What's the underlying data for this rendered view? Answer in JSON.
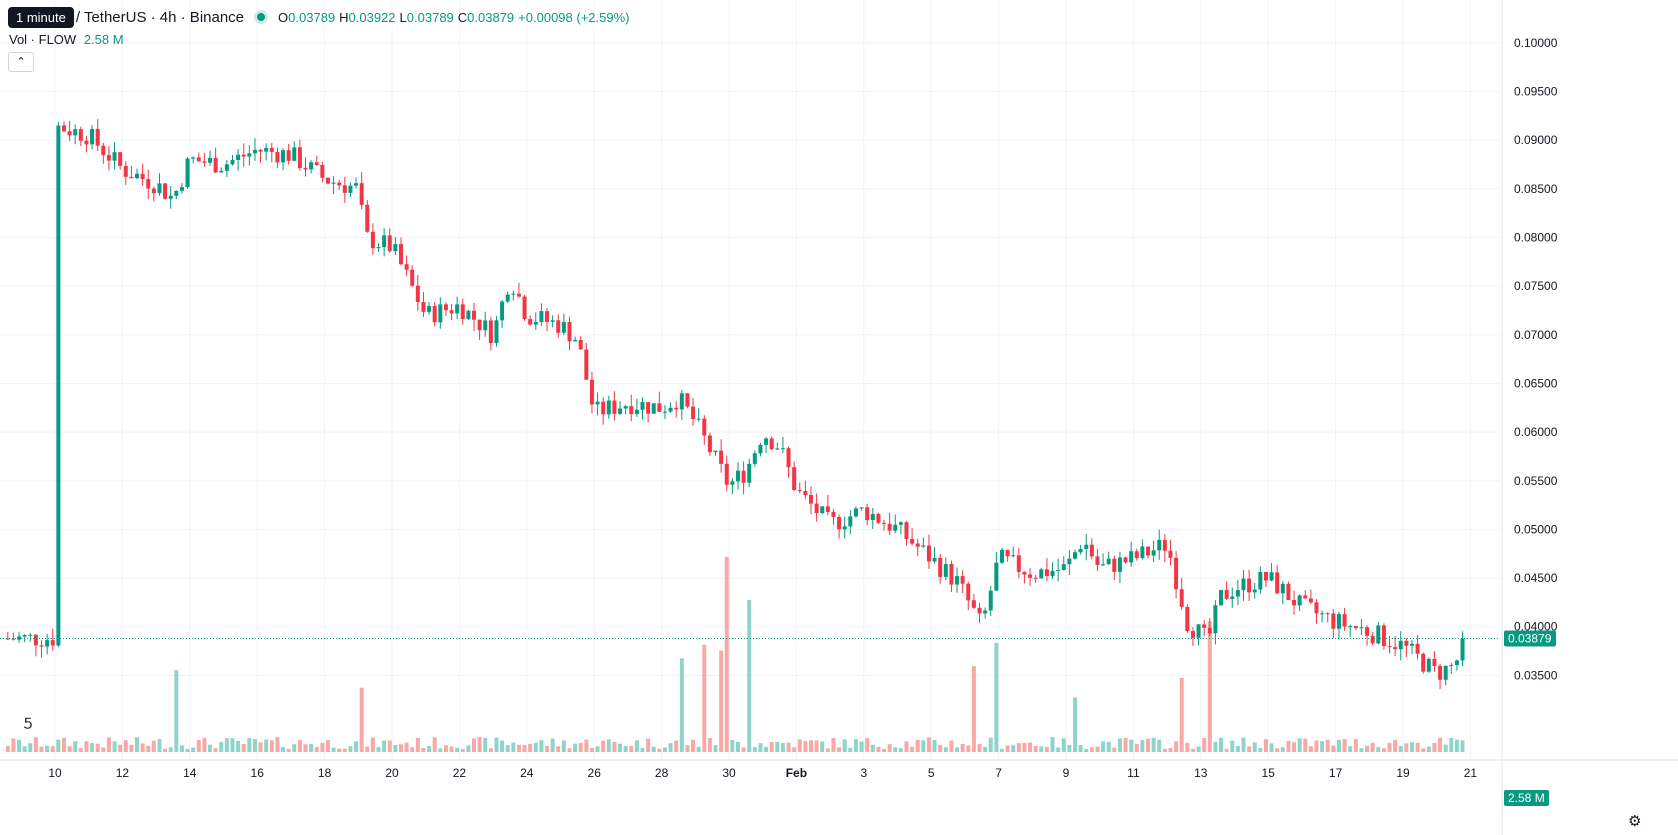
{
  "header": {
    "tooltip": "1 minute",
    "symbol": "/ TetherUS · 4h · Binance",
    "open_label": "O",
    "open": "0.03789",
    "high_label": "H",
    "high": "0.03922",
    "low_label": "L",
    "low": "0.03789",
    "close_label": "C",
    "close": "0.03879",
    "change": "+0.00098 (+2.59%)"
  },
  "volume_legend": {
    "label": "Vol · FLOW",
    "value": "2.58 M"
  },
  "price_badge": "0.03879",
  "volume_badge": "2.58 M",
  "icons": {
    "collapse": "chevron-up-icon",
    "logo": "tradingview-logo-icon",
    "settings": "gear-icon"
  },
  "colors": {
    "up": "#089981",
    "down": "#f23645",
    "vol_up": "#8fd4c8",
    "vol_down": "#f7a9a7"
  },
  "chart_data": {
    "type": "candlestick",
    "interval": "4h",
    "x_ticks": [
      {
        "label": "10",
        "day": 0
      },
      {
        "label": "12",
        "day": 2
      },
      {
        "label": "14",
        "day": 4
      },
      {
        "label": "16",
        "day": 6
      },
      {
        "label": "18",
        "day": 8
      },
      {
        "label": "20",
        "day": 10
      },
      {
        "label": "22",
        "day": 12
      },
      {
        "label": "24",
        "day": 14
      },
      {
        "label": "26",
        "day": 16
      },
      {
        "label": "28",
        "day": 18
      },
      {
        "label": "30",
        "day": 20
      },
      {
        "label": "Feb",
        "day": 22
      },
      {
        "label": "3",
        "day": 24
      },
      {
        "label": "5",
        "day": 26
      },
      {
        "label": "7",
        "day": 28
      },
      {
        "label": "9",
        "day": 30
      },
      {
        "label": "11",
        "day": 32
      },
      {
        "label": "13",
        "day": 34
      },
      {
        "label": "15",
        "day": 36
      },
      {
        "label": "17",
        "day": 38
      },
      {
        "label": "19",
        "day": 40
      },
      {
        "label": "21",
        "day": 42
      }
    ],
    "y_ticks": [
      "0.03500",
      "0.04000",
      "0.04500",
      "0.05000",
      "0.05500",
      "0.06000",
      "0.06500",
      "0.07000",
      "0.07500",
      "0.08000",
      "0.08500",
      "0.09000",
      "0.09500",
      "0.10000"
    ],
    "ylim": [
      0.0335,
      0.1007
    ],
    "last_price": 0.03879,
    "price_path": [
      [
        0,
        0.0915
      ],
      [
        1,
        0.0905
      ],
      [
        2,
        0.087
      ],
      [
        3,
        0.0855
      ],
      [
        3.5,
        0.084
      ],
      [
        4,
        0.088
      ],
      [
        5,
        0.0875
      ],
      [
        6,
        0.089
      ],
      [
        7,
        0.0885
      ],
      [
        8,
        0.086
      ],
      [
        9,
        0.085
      ],
      [
        9.2,
        0.08
      ],
      [
        10,
        0.079
      ],
      [
        11,
        0.072
      ],
      [
        12,
        0.073
      ],
      [
        13,
        0.07
      ],
      [
        13.5,
        0.076
      ],
      [
        14,
        0.072
      ],
      [
        15,
        0.071
      ],
      [
        15.5,
        0.0695
      ],
      [
        16,
        0.062
      ],
      [
        17,
        0.063
      ],
      [
        18,
        0.0625
      ],
      [
        18.5,
        0.0635
      ],
      [
        19,
        0.061
      ],
      [
        20,
        0.0545
      ],
      [
        20.5,
        0.056
      ],
      [
        21,
        0.06
      ],
      [
        21.5,
        0.0585
      ],
      [
        22,
        0.054
      ],
      [
        23,
        0.0505
      ],
      [
        24,
        0.052
      ],
      [
        25,
        0.05
      ],
      [
        26,
        0.047
      ],
      [
        26.8,
        0.0445
      ],
      [
        27.5,
        0.04
      ],
      [
        28,
        0.047
      ],
      [
        29,
        0.0455
      ],
      [
        30,
        0.046
      ],
      [
        30.5,
        0.049
      ],
      [
        31,
        0.046
      ],
      [
        32,
        0.047
      ],
      [
        33,
        0.0485
      ],
      [
        33.6,
        0.0405
      ],
      [
        34.2,
        0.0385
      ],
      [
        34.6,
        0.043
      ],
      [
        35,
        0.044
      ],
      [
        36,
        0.045
      ],
      [
        37,
        0.042
      ],
      [
        38,
        0.0405
      ],
      [
        39,
        0.0395
      ],
      [
        40,
        0.038
      ],
      [
        41,
        0.0352
      ],
      [
        41.5,
        0.036
      ],
      [
        42,
        0.0388
      ]
    ],
    "volume_spikes": [
      {
        "day": 20,
        "rel": 1.0,
        "dir": "down"
      },
      {
        "day": 20.6,
        "rel": 0.78,
        "dir": "up"
      },
      {
        "day": 19.8,
        "rel": 0.52,
        "dir": "down"
      },
      {
        "day": 19.3,
        "rel": 0.55,
        "dir": "down"
      },
      {
        "day": 18.6,
        "rel": 0.48,
        "dir": "up"
      },
      {
        "day": 3.6,
        "rel": 0.42,
        "dir": "down"
      },
      {
        "day": 9.1,
        "rel": 0.33,
        "dir": "down"
      },
      {
        "day": 27.3,
        "rel": 0.44,
        "dir": "up"
      },
      {
        "day": 28,
        "rel": 0.56,
        "dir": "up"
      },
      {
        "day": 33.5,
        "rel": 0.38,
        "dir": "down"
      },
      {
        "day": 34.3,
        "rel": 0.67,
        "dir": "up"
      },
      {
        "day": 30.3,
        "rel": 0.28,
        "dir": "up"
      }
    ]
  }
}
